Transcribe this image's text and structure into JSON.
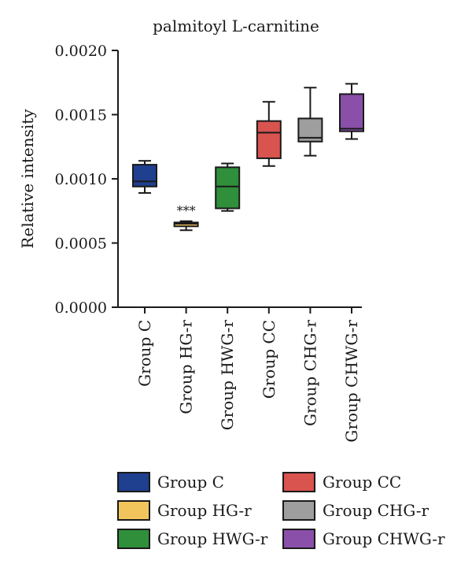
{
  "chart_data": {
    "type": "box",
    "title": "palmitoyl L-carnitine",
    "ylabel": "Relative intensity",
    "xlabel": "",
    "ylim": [
      0,
      0.002
    ],
    "yticks": [
      "0.0000",
      "0.0005",
      "0.0010",
      "0.0015",
      "0.0020"
    ],
    "ytick_values": [
      0,
      0.0005,
      0.001,
      0.0015,
      0.002
    ],
    "grid": false,
    "legend_position": "bottom",
    "series": [
      {
        "name": "Group C",
        "color": "#1f3f8f",
        "min": 0.00089,
        "q1": 0.00094,
        "median": 0.00098,
        "q3": 0.00111,
        "max": 0.00114
      },
      {
        "name": "Group HG-r",
        "color": "#f2c55c",
        "min": 0.0006,
        "q1": 0.00063,
        "median": 0.00065,
        "q3": 0.00066,
        "max": 0.00067,
        "annotation": "***"
      },
      {
        "name": "Group HWG-r",
        "color": "#2f8f3a",
        "min": 0.00075,
        "q1": 0.00077,
        "median": 0.00094,
        "q3": 0.00109,
        "max": 0.00112
      },
      {
        "name": "Group CC",
        "color": "#d9534f",
        "min": 0.0011,
        "q1": 0.00116,
        "median": 0.00136,
        "q3": 0.00145,
        "max": 0.0016
      },
      {
        "name": "Group CHG-r",
        "color": "#9e9e9e",
        "min": 0.00118,
        "q1": 0.00129,
        "median": 0.00132,
        "q3": 0.00147,
        "max": 0.00171
      },
      {
        "name": "Group CHWG-r",
        "color": "#8a4fa8",
        "min": 0.00131,
        "q1": 0.00137,
        "median": 0.00139,
        "q3": 0.00166,
        "max": 0.00174
      }
    ]
  }
}
